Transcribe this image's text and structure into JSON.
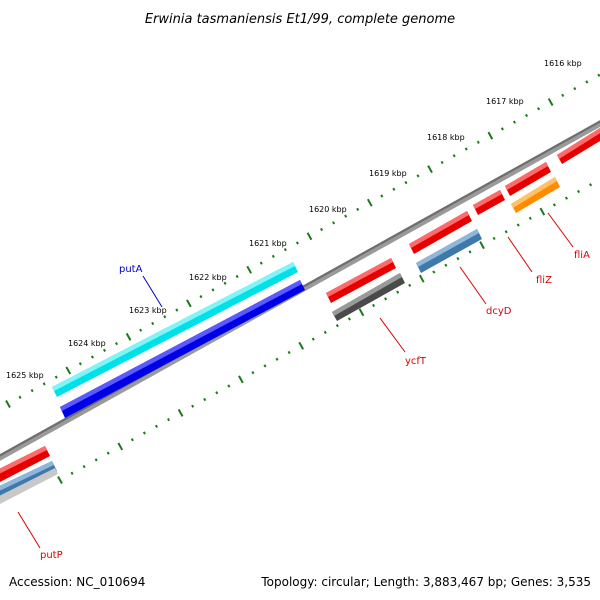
{
  "map": {
    "title": "Erwinia tasmaniensis Et1/99, complete genome",
    "accession": "Accession: NC_010694",
    "summary": "Topology: circular; Length: 3,883,467 bp; Genes: 3,535"
  },
  "ticks": [
    {
      "label": "1616 kbp"
    },
    {
      "label": "1617 kbp"
    },
    {
      "label": "1618 kbp"
    },
    {
      "label": "1619 kbp"
    },
    {
      "label": "1620 kbp"
    },
    {
      "label": "1621 kbp"
    },
    {
      "label": "1622 kbp"
    },
    {
      "label": "1623 kbp"
    },
    {
      "label": "1624 kbp"
    },
    {
      "label": "1625 kbp"
    }
  ],
  "genes": [
    {
      "name": "putA",
      "color": "#0000cc"
    },
    {
      "name": "ycfT",
      "color": "#dd0000"
    },
    {
      "name": "dcyD",
      "color": "#dd0000"
    },
    {
      "name": "fliZ",
      "color": "#dd0000"
    },
    {
      "name": "fliA",
      "color": "#dd0000"
    },
    {
      "name": "putP",
      "color": "#dd0000"
    }
  ],
  "colors": {
    "backbone": "#808080",
    "tick": "#1a7a1a",
    "cds_forward": "#ee0000",
    "cds_reverse": "#0000ee",
    "rna_cyan": "#00e5ee",
    "gray_feature": "#555555",
    "steelblue_feature": "#4682b4",
    "orange_feature": "#ff8c00"
  }
}
